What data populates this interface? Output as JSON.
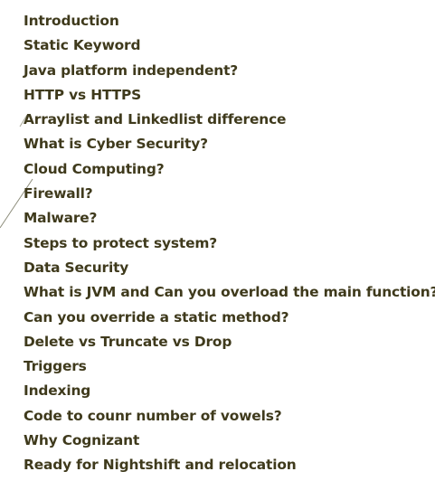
{
  "slide": {
    "colors": {
      "text": "#3f3a1c",
      "background": "#ffffff",
      "decorative_lines": "#8c8c7a"
    },
    "topics": [
      "Introduction",
      "Static Keyword",
      "Java platform independent?",
      "HTTP vs HTTPS",
      "Arraylist and Linkedlist difference",
      "What is Cyber Security?",
      "Cloud Computing?",
      "Firewall?",
      "Malware?",
      "Steps to protect system?",
      "Data Security",
      "What is JVM and Can you overload the main function?",
      "Can you override a static method?",
      "Delete vs Truncate vs Drop",
      "Triggers",
      "Indexing",
      "Code to counr number of vowels?",
      "Why Cognizant",
      "Ready for Nightshift and relocation"
    ]
  }
}
